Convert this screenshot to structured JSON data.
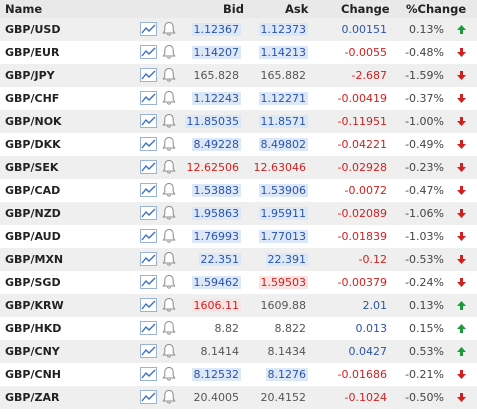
{
  "header": {
    "name": "Name",
    "bid": "Bid",
    "ask": "Ask",
    "change": "Change",
    "pct_change": "%Change"
  },
  "rows": [
    {
      "pair": "GBP/USD",
      "bid": "1.12367",
      "ask": "1.12373",
      "change": "0.00151",
      "pct": "0.13%",
      "dir": "up"
    },
    {
      "pair": "GBP/EUR",
      "bid": "1.14207",
      "ask": "1.14213",
      "change": "-0.0055",
      "pct": "-0.48%",
      "dir": "down"
    },
    {
      "pair": "GBP/JPY",
      "bid": "165.828",
      "ask": "165.882",
      "change": "-2.687",
      "pct": "-1.59%",
      "dir": "down"
    },
    {
      "pair": "GBP/CHF",
      "bid": "1.12243",
      "ask": "1.12271",
      "change": "-0.00419",
      "pct": "-0.37%",
      "dir": "down"
    },
    {
      "pair": "GBP/NOK",
      "bid": "11.85035",
      "ask": "11.8571",
      "change": "-0.11951",
      "pct": "-1.00%",
      "dir": "down"
    },
    {
      "pair": "GBP/DKK",
      "bid": "8.49228",
      "ask": "8.49802",
      "change": "-0.04221",
      "pct": "-0.49%",
      "dir": "down"
    },
    {
      "pair": "GBP/SEK",
      "bid": "12.62506",
      "ask": "12.63046",
      "change": "-0.02928",
      "pct": "-0.23%",
      "dir": "down"
    },
    {
      "pair": "GBP/CAD",
      "bid": "1.53883",
      "ask": "1.53906",
      "change": "-0.0072",
      "pct": "-0.47%",
      "dir": "down"
    },
    {
      "pair": "GBP/NZD",
      "bid": "1.95863",
      "ask": "1.95911",
      "change": "-0.02089",
      "pct": "-1.06%",
      "dir": "down"
    },
    {
      "pair": "GBP/AUD",
      "bid": "1.76993",
      "ask": "1.77013",
      "change": "-0.01839",
      "pct": "-1.03%",
      "dir": "down"
    },
    {
      "pair": "GBP/MXN",
      "bid": "22.351",
      "ask": "22.391",
      "change": "-0.12",
      "pct": "-0.53%",
      "dir": "down"
    },
    {
      "pair": "GBP/SGD",
      "bid": "1.59462",
      "ask": "1.59503",
      "change": "-0.00379",
      "pct": "-0.24%",
      "dir": "down"
    },
    {
      "pair": "GBP/KRW",
      "bid": "1606.11",
      "ask": "1609.88",
      "change": "2.01",
      "pct": "0.13%",
      "dir": "up"
    },
    {
      "pair": "GBP/HKD",
      "bid": "8.82",
      "ask": "8.822",
      "change": "0.013",
      "pct": "0.15%",
      "dir": "up"
    },
    {
      "pair": "GBP/CNY",
      "bid": "8.1414",
      "ask": "8.1434",
      "change": "0.0427",
      "pct": "0.53%",
      "dir": "up"
    },
    {
      "pair": "GBP/CNH",
      "bid": "8.12532",
      "ask": "8.1276",
      "change": "-0.01686",
      "pct": "-0.21%",
      "dir": "down"
    },
    {
      "pair": "GBP/ZAR",
      "bid": "20.4005",
      "ask": "20.4152",
      "change": "-0.1024",
      "pct": "-0.50%",
      "dir": "down"
    }
  ],
  "styles": {
    "bid": [
      "blue",
      "blue",
      "plain",
      "blue",
      "blue",
      "blue",
      "red",
      "blue",
      "blue",
      "blue",
      "blue",
      "blue",
      "redbg",
      "plain",
      "plain",
      "blue",
      "plain"
    ],
    "ask": [
      "blue",
      "blue",
      "plain",
      "blue",
      "blue",
      "blue",
      "red",
      "blue",
      "blue",
      "blue",
      "blue",
      "redbg",
      "plain",
      "plain",
      "plain",
      "blue",
      "plain"
    ]
  },
  "colors": {
    "up": "#1a9a3a",
    "down": "#d21f1f",
    "text_blue": "#2b55a8",
    "text_red": "#d21f1f"
  },
  "icons": {
    "chart": "line-chart-icon",
    "alert": "bell-icon",
    "up": "arrow-up-icon",
    "down": "arrow-down-icon"
  }
}
